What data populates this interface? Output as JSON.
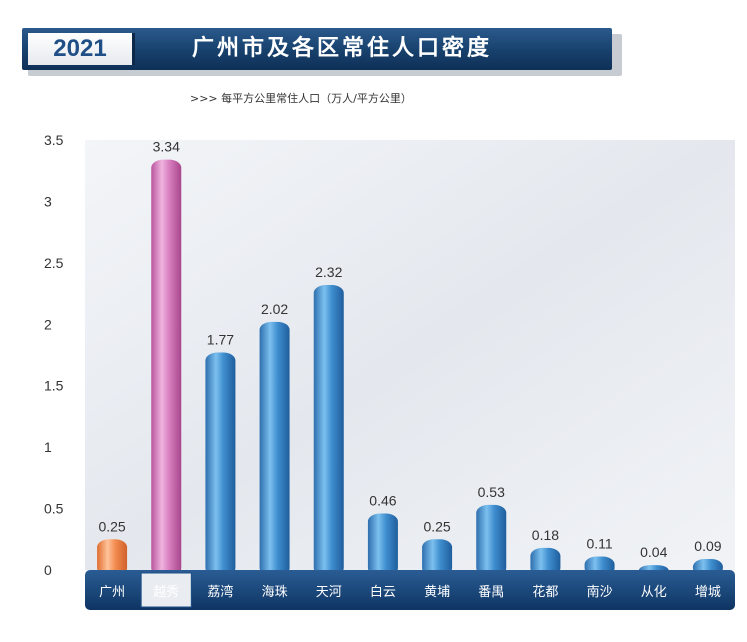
{
  "header": {
    "year": "2021",
    "title": "广州市及各区常住人口密度"
  },
  "subtitle": ">>> 每平方公里常住人口（万人/平方公里）",
  "colors": {
    "bar_default": "#3d8bc9",
    "bar_highlight": "#d97fc0",
    "bar_city": "#f08a4b",
    "category_band": "#14467e"
  },
  "chart_data": {
    "type": "bar",
    "categories": [
      "广州",
      "越秀",
      "荔湾",
      "海珠",
      "天河",
      "白云",
      "黄埔",
      "番禺",
      "花都",
      "南沙",
      "从化",
      "增城"
    ],
    "values": [
      0.25,
      3.34,
      1.77,
      2.02,
      2.32,
      0.46,
      0.25,
      0.53,
      0.18,
      0.11,
      0.04,
      0.09
    ],
    "value_labels": [
      "0.25",
      "3.34",
      "1.77",
      "2.02",
      "2.32",
      "0.46",
      "0.25",
      "0.53",
      "0.18",
      "0.11",
      "0.04",
      "0.09"
    ],
    "y_ticks": [
      "0",
      "0.5",
      "1",
      "1.5",
      "2",
      "2.5",
      "3",
      "3.5"
    ],
    "ylim": [
      0,
      3.5
    ],
    "highlight": [
      "广州",
      "越秀"
    ],
    "grid": false,
    "legend": "none"
  }
}
